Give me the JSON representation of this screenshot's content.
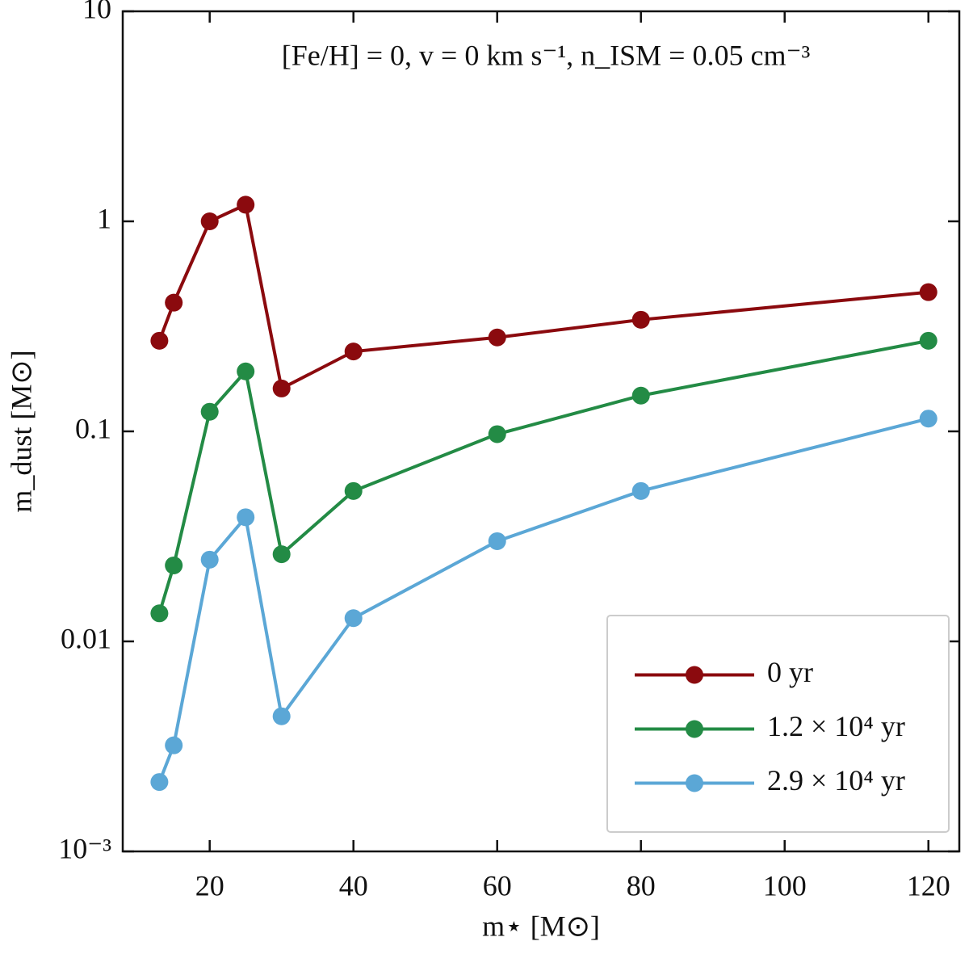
{
  "chart_data": {
    "type": "line",
    "title": "[Fe/H] = 0, v = 0 km s⁻¹, n_ISM = 0.05 cm⁻³",
    "xlabel": "m⋆ [M⊙]",
    "ylabel": "m_dust [M⊙]",
    "x": [
      13,
      15,
      20,
      25,
      30,
      40,
      60,
      80,
      120
    ],
    "series": [
      {
        "name": "0 yr",
        "color": "#8b0a0e",
        "values": [
          0.27,
          0.41,
          1.0,
          1.2,
          0.16,
          0.24,
          0.28,
          0.34,
          0.46
        ]
      },
      {
        "name": "1.2 × 10⁴ yr",
        "color": "#238b45",
        "values": [
          0.0136,
          0.023,
          0.124,
          0.193,
          0.026,
          0.052,
          0.097,
          0.148,
          0.27
        ]
      },
      {
        "name": "2.9 × 10⁴ yr",
        "color": "#5ba7d6",
        "values": [
          0.00214,
          0.0032,
          0.0245,
          0.039,
          0.0044,
          0.0129,
          0.03,
          0.052,
          0.115
        ]
      }
    ],
    "xlim": [
      7.9,
      124.3
    ],
    "ylim": [
      0.001,
      10
    ],
    "xticks": [
      20,
      40,
      60,
      80,
      100,
      120
    ],
    "yticks": [
      {
        "value": 0.001,
        "label": "10⁻³"
      },
      0.01,
      0.1,
      1,
      10
    ],
    "yscale": "log",
    "grid": false,
    "legend": "lower right"
  }
}
